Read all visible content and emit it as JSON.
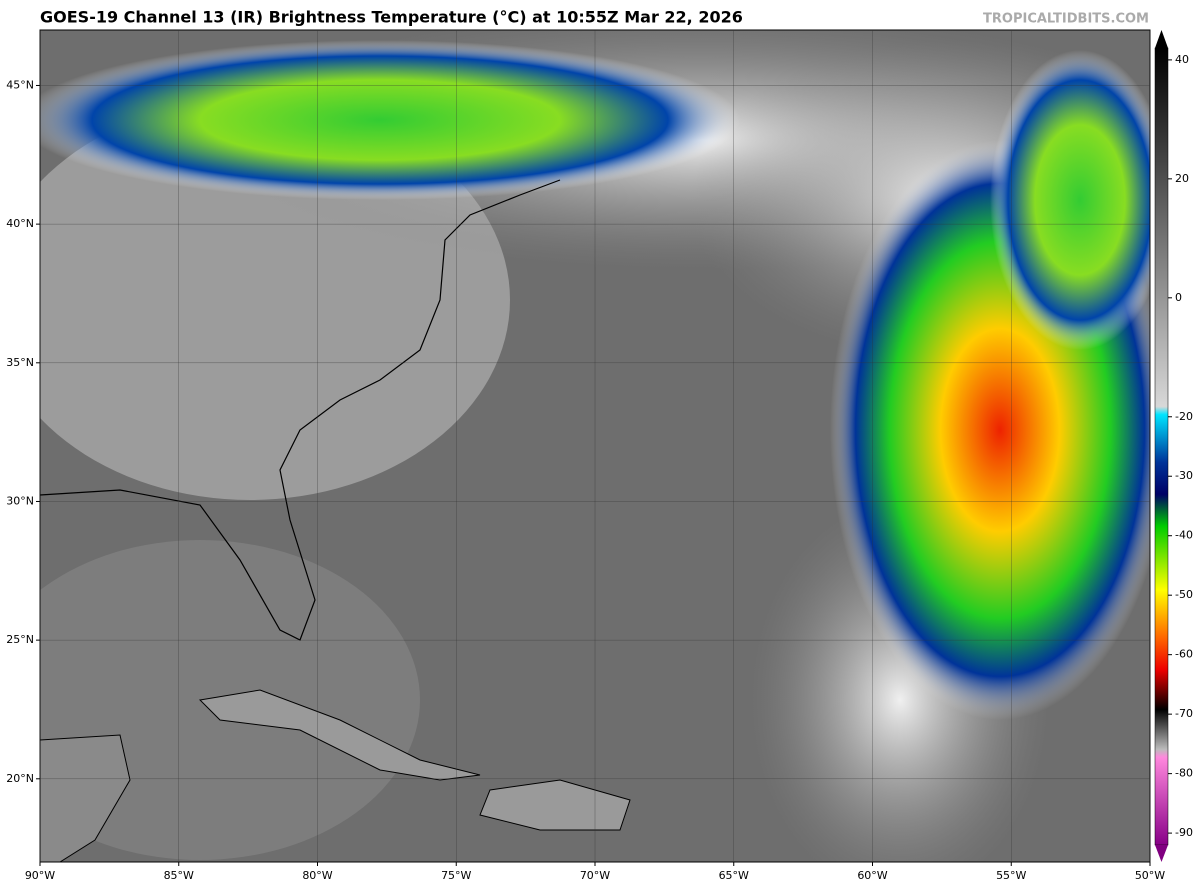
{
  "header": {
    "title": "GOES-19 Channel 13 (IR) Brightness Temperature (°C) at 10:55Z Mar 22, 2026",
    "credit": "TROPICALTIDBITS.COM"
  },
  "map": {
    "lonlim": [
      -90,
      -50
    ],
    "latlim": [
      17,
      47
    ],
    "lon_ticks": [
      {
        "value": -90,
        "label": "90°W"
      },
      {
        "value": -85,
        "label": "85°W"
      },
      {
        "value": -80,
        "label": "80°W"
      },
      {
        "value": -75,
        "label": "75°W"
      },
      {
        "value": -70,
        "label": "70°W"
      },
      {
        "value": -65,
        "label": "65°W"
      },
      {
        "value": -60,
        "label": "60°W"
      },
      {
        "value": -55,
        "label": "55°W"
      },
      {
        "value": -50,
        "label": "50°W"
      }
    ],
    "lat_ticks": [
      {
        "value": 20,
        "label": "20°N"
      },
      {
        "value": 25,
        "label": "25°N"
      },
      {
        "value": 30,
        "label": "30°N"
      },
      {
        "value": 35,
        "label": "35°N"
      },
      {
        "value": 40,
        "label": "40°N"
      },
      {
        "value": 45,
        "label": "45°N"
      }
    ]
  },
  "colorbar": {
    "lim": [
      -92,
      42
    ],
    "ticks": [
      40,
      20,
      0,
      -20,
      -30,
      -40,
      -50,
      -60,
      -70,
      -80,
      -90
    ]
  }
}
